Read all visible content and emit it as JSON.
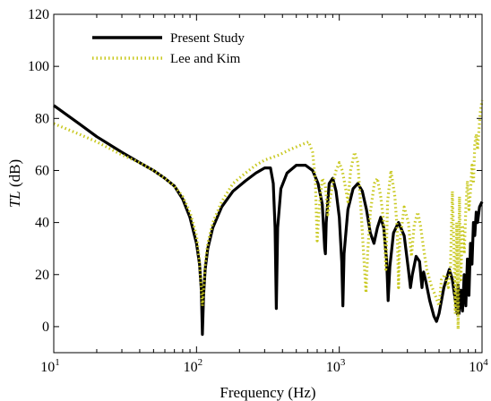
{
  "chart_data": {
    "type": "line",
    "xscale": "log",
    "xlim": [
      10,
      10000
    ],
    "ylim": [
      -10,
      120
    ],
    "yticks": [
      0,
      20,
      40,
      60,
      80,
      100,
      120
    ],
    "xticks": [
      {
        "value": 10,
        "base": "10",
        "exp": "1"
      },
      {
        "value": 100,
        "base": "10",
        "exp": "2"
      },
      {
        "value": 1000,
        "base": "10",
        "exp": "3"
      },
      {
        "value": 10000,
        "base": "10",
        "exp": "4"
      }
    ],
    "xlabel": "Frequency (Hz)",
    "ylabel_italic": "TL",
    "ylabel_unit": " (dB)",
    "grid": false,
    "legend_position": "top-left",
    "series": [
      {
        "name": "Present Study",
        "color": "#000000",
        "style": "solid",
        "points": [
          [
            10,
            85
          ],
          [
            15,
            78
          ],
          [
            20,
            73
          ],
          [
            30,
            67
          ],
          [
            40,
            63
          ],
          [
            50,
            60
          ],
          [
            60,
            57
          ],
          [
            70,
            54
          ],
          [
            80,
            49
          ],
          [
            90,
            42
          ],
          [
            100,
            32
          ],
          [
            105,
            24
          ],
          [
            108,
            14
          ],
          [
            110,
            -3
          ],
          [
            112,
            12
          ],
          [
            115,
            22
          ],
          [
            120,
            30
          ],
          [
            130,
            38
          ],
          [
            150,
            46
          ],
          [
            180,
            52
          ],
          [
            220,
            56
          ],
          [
            260,
            59
          ],
          [
            300,
            61
          ],
          [
            330,
            61
          ],
          [
            345,
            55
          ],
          [
            355,
            38
          ],
          [
            362,
            7
          ],
          [
            370,
            38
          ],
          [
            390,
            53
          ],
          [
            430,
            59
          ],
          [
            500,
            62
          ],
          [
            580,
            62
          ],
          [
            650,
            60
          ],
          [
            710,
            55
          ],
          [
            760,
            47
          ],
          [
            790,
            30
          ],
          [
            800,
            28
          ],
          [
            810,
            40
          ],
          [
            850,
            55
          ],
          [
            900,
            57
          ],
          [
            950,
            52
          ],
          [
            1000,
            42
          ],
          [
            1040,
            25
          ],
          [
            1060,
            8
          ],
          [
            1080,
            28
          ],
          [
            1150,
            45
          ],
          [
            1250,
            53
          ],
          [
            1350,
            55
          ],
          [
            1450,
            52
          ],
          [
            1550,
            45
          ],
          [
            1650,
            36
          ],
          [
            1750,
            32
          ],
          [
            1850,
            38
          ],
          [
            1950,
            42
          ],
          [
            2050,
            38
          ],
          [
            2150,
            25
          ],
          [
            2200,
            10
          ],
          [
            2260,
            23
          ],
          [
            2400,
            36
          ],
          [
            2600,
            40
          ],
          [
            2850,
            35
          ],
          [
            3050,
            22
          ],
          [
            3150,
            15
          ],
          [
            3250,
            20
          ],
          [
            3450,
            27
          ],
          [
            3650,
            25
          ],
          [
            3750,
            18
          ],
          [
            3800,
            15
          ],
          [
            3850,
            20
          ],
          [
            3900,
            21
          ],
          [
            4050,
            17
          ],
          [
            4300,
            10
          ],
          [
            4600,
            4
          ],
          [
            4800,
            2
          ],
          [
            5000,
            5
          ],
          [
            5400,
            15
          ],
          [
            5900,
            22
          ],
          [
            6200,
            18
          ],
          [
            6500,
            10
          ],
          [
            6700,
            5
          ],
          [
            6800,
            16
          ],
          [
            6900,
            5
          ],
          [
            7100,
            14
          ],
          [
            7300,
            6
          ],
          [
            7500,
            20
          ],
          [
            7700,
            8
          ],
          [
            7900,
            26
          ],
          [
            8100,
            12
          ],
          [
            8300,
            32
          ],
          [
            8500,
            24
          ],
          [
            8700,
            40
          ],
          [
            8900,
            35
          ],
          [
            9100,
            44
          ],
          [
            9300,
            40
          ],
          [
            9600,
            46
          ],
          [
            10000,
            48
          ]
        ]
      },
      {
        "name": "Lee and Kim",
        "color": "#c8c81e",
        "style": "dotted",
        "points": [
          [
            10,
            78
          ],
          [
            15,
            74
          ],
          [
            20,
            71
          ],
          [
            30,
            66
          ],
          [
            40,
            63
          ],
          [
            50,
            60
          ],
          [
            60,
            57
          ],
          [
            70,
            54
          ],
          [
            80,
            50
          ],
          [
            90,
            44
          ],
          [
            100,
            35
          ],
          [
            105,
            25
          ],
          [
            108,
            15
          ],
          [
            110,
            8
          ],
          [
            112,
            14
          ],
          [
            115,
            24
          ],
          [
            120,
            32
          ],
          [
            130,
            40
          ],
          [
            150,
            48
          ],
          [
            180,
            55
          ],
          [
            220,
            59
          ],
          [
            260,
            62
          ],
          [
            300,
            64
          ],
          [
            380,
            66
          ],
          [
            450,
            68
          ],
          [
            550,
            70
          ],
          [
            610,
            71
          ],
          [
            650,
            67
          ],
          [
            680,
            56
          ],
          [
            700,
            33
          ],
          [
            720,
            44
          ],
          [
            760,
            57
          ],
          [
            800,
            54
          ],
          [
            830,
            43
          ],
          [
            850,
            47
          ],
          [
            900,
            55
          ],
          [
            950,
            60
          ],
          [
            1000,
            63
          ],
          [
            1050,
            60
          ],
          [
            1100,
            54
          ],
          [
            1150,
            48
          ],
          [
            1200,
            60
          ],
          [
            1280,
            67
          ],
          [
            1350,
            63
          ],
          [
            1420,
            45
          ],
          [
            1480,
            28
          ],
          [
            1540,
            13
          ],
          [
            1580,
            28
          ],
          [
            1650,
            44
          ],
          [
            1760,
            55
          ],
          [
            1850,
            57
          ],
          [
            1950,
            50
          ],
          [
            2050,
            40
          ],
          [
            2120,
            22
          ],
          [
            2180,
            48
          ],
          [
            2300,
            60
          ],
          [
            2450,
            50
          ],
          [
            2550,
            37
          ],
          [
            2600,
            15
          ],
          [
            2650,
            32
          ],
          [
            2850,
            46
          ],
          [
            3050,
            40
          ],
          [
            3200,
            27
          ],
          [
            3350,
            39
          ],
          [
            3550,
            44
          ],
          [
            3700,
            39
          ],
          [
            3900,
            30
          ],
          [
            4100,
            22
          ],
          [
            4400,
            16
          ],
          [
            4700,
            12
          ],
          [
            5000,
            8
          ],
          [
            5200,
            18
          ],
          [
            5500,
            20
          ],
          [
            5800,
            15
          ],
          [
            6000,
            22
          ],
          [
            6200,
            52
          ],
          [
            6350,
            30
          ],
          [
            6500,
            5
          ],
          [
            6650,
            40
          ],
          [
            6800,
            -1
          ],
          [
            6950,
            50
          ],
          [
            7100,
            18
          ],
          [
            7300,
            39
          ],
          [
            7500,
            28
          ],
          [
            7700,
            45
          ],
          [
            7900,
            56
          ],
          [
            8100,
            45
          ],
          [
            8300,
            52
          ],
          [
            8500,
            62
          ],
          [
            8700,
            55
          ],
          [
            8900,
            70
          ],
          [
            9100,
            74
          ],
          [
            9300,
            68
          ],
          [
            9500,
            75
          ],
          [
            9700,
            82
          ],
          [
            10000,
            87
          ]
        ]
      }
    ]
  }
}
